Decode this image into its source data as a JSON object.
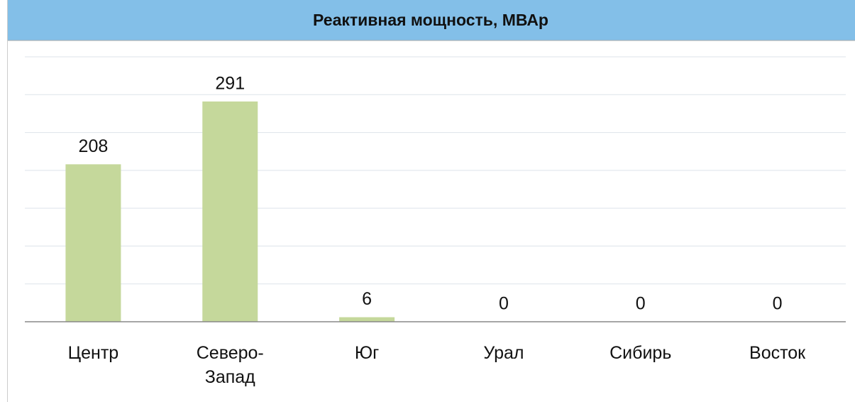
{
  "chart_data": {
    "type": "bar",
    "title": "Реактивная мощность, МВАр",
    "categories": [
      "Центр",
      "Северо-Запад",
      "Юг",
      "Урал",
      "Сибирь",
      "Восток"
    ],
    "values": [
      208,
      291,
      6,
      0,
      0,
      0
    ],
    "color": "#c5d89b",
    "ylim": [
      0,
      350
    ],
    "yticks": [
      0,
      50,
      100,
      150,
      200,
      250,
      300,
      350
    ],
    "grid": true
  }
}
